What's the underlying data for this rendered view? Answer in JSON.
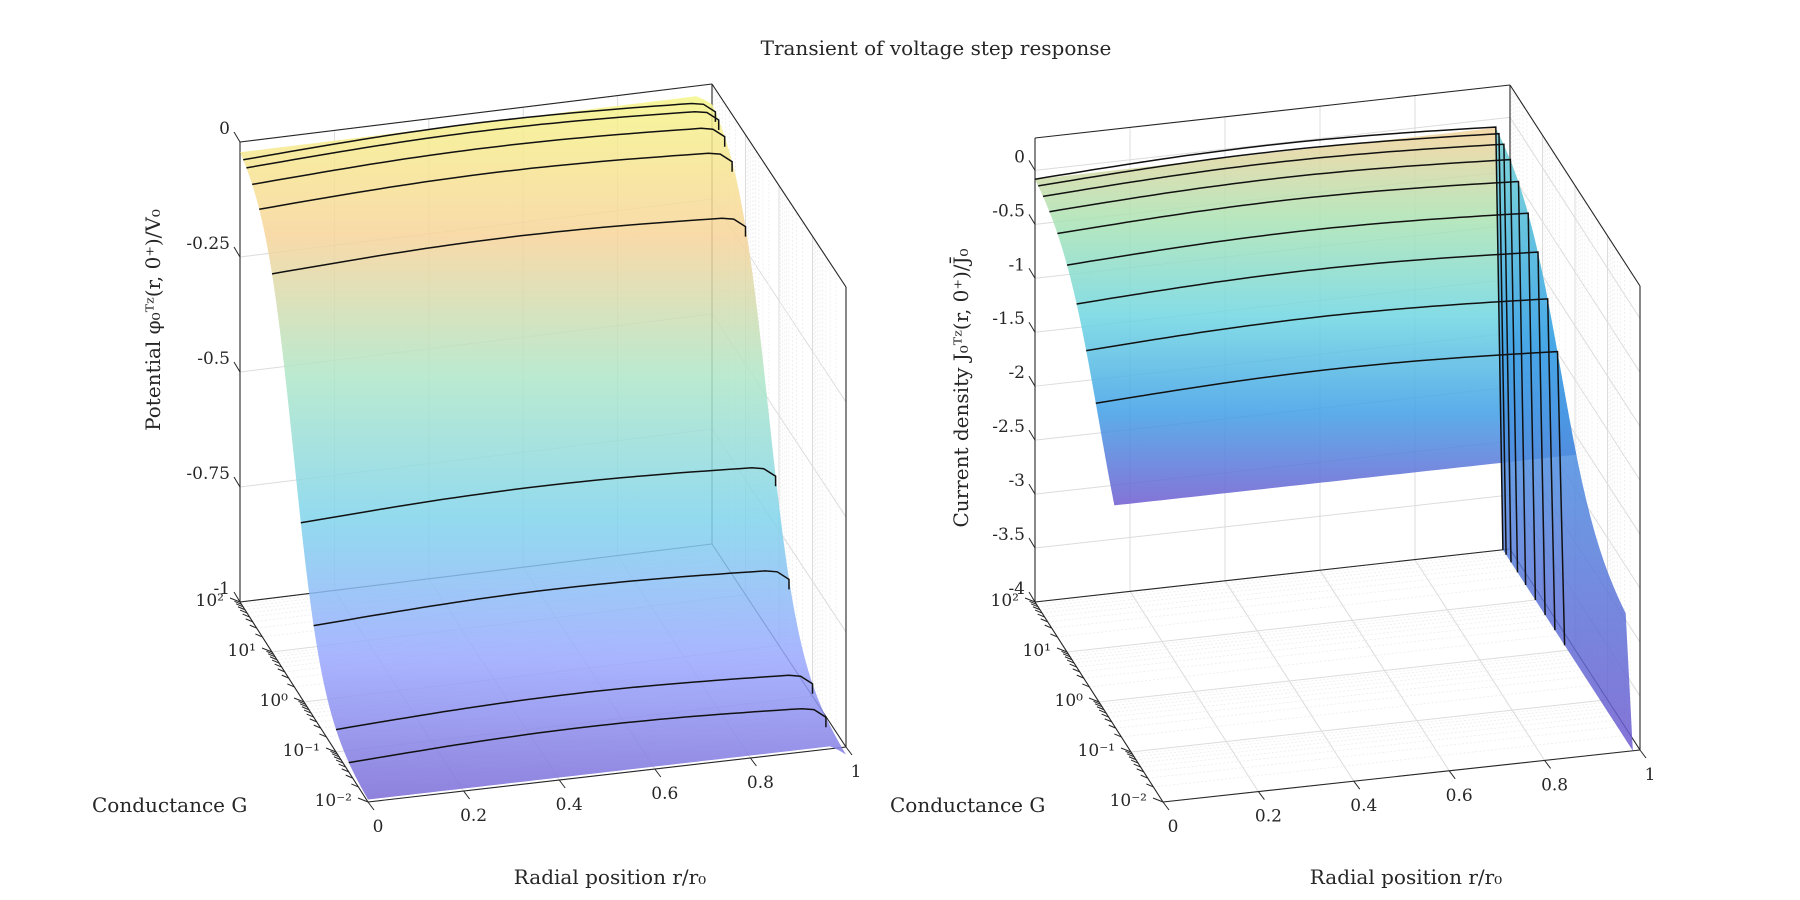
{
  "figure": {
    "title": "Transient of voltage step response"
  },
  "chart_data": [
    {
      "type": "surface",
      "name": "potential",
      "zlabel": "Potential φ₀ᵀᶻ(r, 0⁺)/V₀",
      "xlabel": "Radial position r/r₀",
      "ylabel": "Conductance G",
      "x_ticks": [
        "0",
        "0.2",
        "0.4",
        "0.6",
        "0.8",
        "1"
      ],
      "y_ticks": [
        "10⁻²",
        "10⁻¹",
        "10⁰",
        "10¹",
        "10²"
      ],
      "z_ticks": [
        "-1",
        "-0.75",
        "-0.5",
        "-0.25",
        "0"
      ],
      "xlim": [
        0,
        1
      ],
      "ylim_log10": [
        -2,
        2
      ],
      "zlim": [
        -1,
        0
      ],
      "contour_lines_at_G_log10": [
        1.9,
        1.8,
        1.62,
        1.4,
        1.0,
        0.1,
        -0.3,
        -1.0,
        -1.4
      ],
      "grid": true,
      "colormap": [
        "#7a6bd6",
        "#9aa8ff",
        "#80d4ec",
        "#aee6c8",
        "#f7d49a",
        "#f5f58a"
      ]
    },
    {
      "type": "surface",
      "name": "current-density",
      "zlabel": "Current density J₀ᵀᶻ(r, 0⁺)/J̄₀",
      "xlabel": "Radial position r/r₀",
      "ylabel": "Conductance G",
      "x_ticks": [
        "0",
        "0.2",
        "0.4",
        "0.6",
        "0.8",
        "1"
      ],
      "y_ticks": [
        "10⁻²",
        "10⁻¹",
        "10⁰",
        "10¹",
        "10²"
      ],
      "z_ticks": [
        "-4",
        "-3.5",
        "-3",
        "-2.5",
        "-2",
        "-1.5",
        "-1",
        "-0.5",
        "0"
      ],
      "xlim": [
        0,
        1
      ],
      "ylim_log10": [
        -2,
        2
      ],
      "zlim": [
        -4,
        0.3
      ],
      "contour_lines_at_G_log10": [
        2.0,
        1.9,
        1.75,
        1.55,
        1.3,
        1.0,
        0.7,
        0.4,
        0.1
      ],
      "grid": true,
      "colormap": [
        "#6f5bd0",
        "#3fa0e6",
        "#6fd6e2",
        "#a9e3b4",
        "#f5d29a"
      ]
    }
  ]
}
